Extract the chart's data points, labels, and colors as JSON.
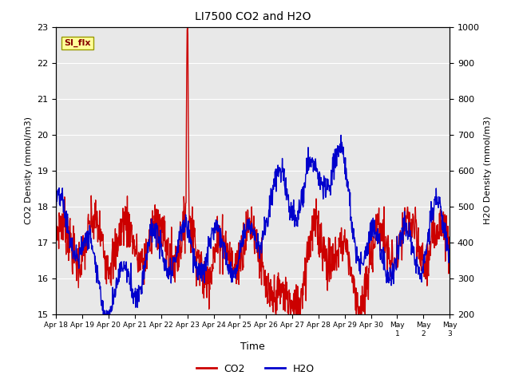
{
  "title": "LI7500 CO2 and H2O",
  "xlabel": "Time",
  "ylabel_left": "CO2 Density (mmol/m3)",
  "ylabel_right": "H2O Density (mmol/m3)",
  "left_ylim": [
    15.0,
    23.0
  ],
  "right_ylim": [
    200,
    1000
  ],
  "co2_color": "#cc0000",
  "h2o_color": "#0000cc",
  "bg_color": "#e8e8e8",
  "annotation_text": "SI_flx",
  "annotation_bg": "#ffff99",
  "annotation_border": "#999900",
  "x_tick_labels": [
    "Apr 18",
    "Apr 19",
    "Apr 20",
    "Apr 21",
    "Apr 22",
    "Apr 23",
    "Apr 24",
    "Apr 25",
    "Apr 26",
    "Apr 27",
    "Apr 28",
    "Apr 29",
    "Apr 30",
    "May 1",
    "May 2",
    "May 3"
  ],
  "line_width": 1.0
}
